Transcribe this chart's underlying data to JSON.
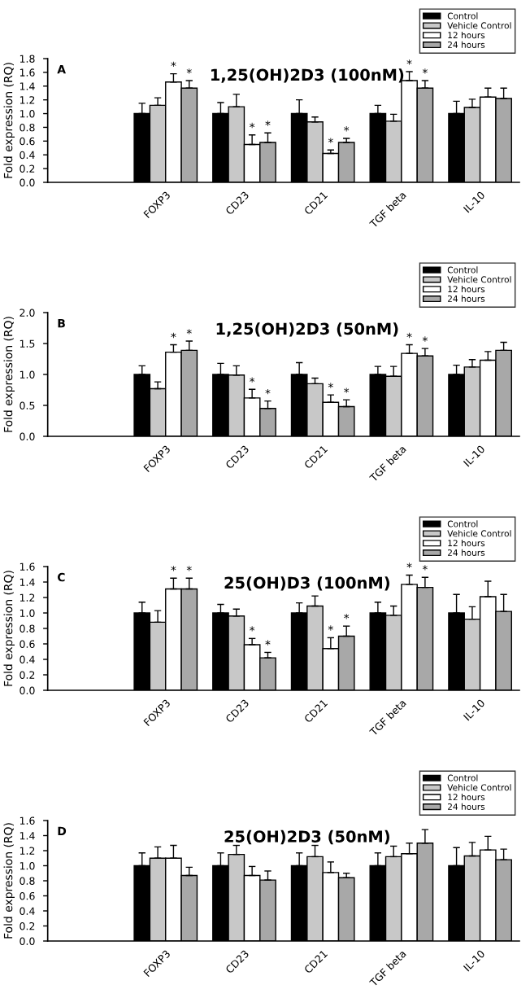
{
  "chart_data": [
    {
      "type": "bar",
      "title": "1,25(OH)2D3 (100nM)",
      "ylabel": "Fold expression (RQ)",
      "annotations": [
        "A"
      ],
      "categories": [
        null,
        "FOXP3",
        "CD23",
        "CD21",
        "TGF beta",
        "IL-10"
      ],
      "ylim": [
        0,
        1.8
      ],
      "yticks": [
        {
          "value": 0,
          "label": "0.0"
        },
        {
          "value": 0.2,
          "label": "0.2"
        },
        {
          "value": 0.4,
          "label": "0.4"
        },
        {
          "value": 0.6,
          "label": "0.6"
        },
        {
          "value": 0.8,
          "label": "0.8"
        },
        {
          "value": 1.0,
          "label": "1.0"
        },
        {
          "value": 1.2,
          "label": "1.2"
        },
        {
          "value": 1.4,
          "label": "1.4"
        },
        {
          "value": 1.6,
          "label": "1.6"
        },
        {
          "value": 1.8,
          "label": "1.8"
        }
      ],
      "legend": "top right",
      "grid": false,
      "series": [
        {
          "name": "Control",
          "color": "#000000",
          "values": [
            null,
            1.0,
            1.0,
            1.0,
            1.0,
            1.0
          ],
          "errors": [
            null,
            [
              1.0,
              1.15
            ],
            [
              1.0,
              1.16
            ],
            [
              1.0,
              1.2
            ],
            [
              1.0,
              1.12
            ],
            [
              1.0,
              1.18
            ]
          ]
        },
        {
          "name": "Vehicle Control",
          "color": "#c8c8c8",
          "values": [
            null,
            1.12,
            1.1,
            0.88,
            0.89,
            1.09
          ],
          "errors": [
            null,
            [
              1.12,
              1.23
            ],
            [
              1.1,
              1.28
            ],
            [
              0.88,
              0.95
            ],
            [
              0.89,
              0.99
            ],
            [
              1.09,
              1.21
            ]
          ]
        },
        {
          "name": "12 hours",
          "color": "#ffffff",
          "values": [
            null,
            1.46,
            0.55,
            0.42,
            1.48,
            1.24
          ],
          "errors": [
            null,
            [
              1.46,
              1.58
            ],
            [
              0.55,
              0.69
            ],
            [
              0.42,
              0.47
            ],
            [
              1.48,
              1.61
            ],
            [
              1.24,
              1.37
            ]
          ],
          "value_labels": [
            null,
            "*",
            "*",
            "*",
            "*",
            null
          ]
        },
        {
          "name": "24 hours",
          "color": "#a8a8a8",
          "values": [
            null,
            1.37,
            0.58,
            0.58,
            1.37,
            1.22
          ],
          "errors": [
            null,
            [
              1.37,
              1.48
            ],
            [
              0.58,
              0.72
            ],
            [
              0.58,
              0.64
            ],
            [
              1.37,
              1.48
            ],
            [
              1.22,
              1.37
            ]
          ],
          "value_labels": [
            null,
            "*",
            "*",
            "*",
            "*",
            null
          ]
        }
      ]
    },
    {
      "type": "bar",
      "title": "1,25(OH)2D3 (50nM)",
      "ylabel": "Fold expression (RQ)",
      "annotations": [
        "B"
      ],
      "categories": [
        null,
        "FOXP3",
        "CD23",
        "CD21",
        "TGF beta",
        "IL-10"
      ],
      "ylim": [
        0,
        2.0
      ],
      "yticks": [
        {
          "value": 0,
          "label": "0.0"
        },
        {
          "value": 0.5,
          "label": "0.5"
        },
        {
          "value": 1.0,
          "label": "1.0"
        },
        {
          "value": 1.5,
          "label": "1.5"
        },
        {
          "value": 2.0,
          "label": "2.0"
        }
      ],
      "legend": "top right",
      "grid": false,
      "series": [
        {
          "name": "Control",
          "color": "#000000",
          "values": [
            null,
            1.0,
            1.0,
            1.0,
            1.0,
            1.0
          ],
          "errors": [
            null,
            [
              1.0,
              1.14
            ],
            [
              1.0,
              1.18
            ],
            [
              1.0,
              1.19
            ],
            [
              1.0,
              1.13
            ],
            [
              1.0,
              1.15
            ]
          ]
        },
        {
          "name": "Vehicle Control",
          "color": "#c8c8c8",
          "values": [
            null,
            0.77,
            0.99,
            0.85,
            0.97,
            1.12
          ],
          "errors": [
            null,
            [
              0.77,
              0.88
            ],
            [
              0.99,
              1.14
            ],
            [
              0.85,
              0.94
            ],
            [
              0.97,
              1.13
            ],
            [
              1.12,
              1.24
            ]
          ]
        },
        {
          "name": "12 hours",
          "color": "#ffffff",
          "values": [
            null,
            1.36,
            0.62,
            0.55,
            1.34,
            1.23
          ],
          "errors": [
            null,
            [
              1.36,
              1.48
            ],
            [
              0.62,
              0.76
            ],
            [
              0.55,
              0.67
            ],
            [
              1.34,
              1.48
            ],
            [
              1.23,
              1.37
            ]
          ],
          "value_labels": [
            null,
            "*",
            "*",
            "*",
            "*",
            null
          ]
        },
        {
          "name": "24 hours",
          "color": "#a8a8a8",
          "values": [
            null,
            1.39,
            0.45,
            0.48,
            1.3,
            1.39
          ],
          "errors": [
            null,
            [
              1.39,
              1.54
            ],
            [
              0.45,
              0.57
            ],
            [
              0.48,
              0.59
            ],
            [
              1.3,
              1.42
            ],
            [
              1.39,
              1.52
            ]
          ],
          "value_labels": [
            null,
            "*",
            "*",
            "*",
            "*",
            null
          ]
        }
      ]
    },
    {
      "type": "bar",
      "title": "25(OH)D3 (100nM)",
      "ylabel": "Fold expression (RQ)",
      "annotations": [
        "C"
      ],
      "categories": [
        null,
        "FOXP3",
        "CD23",
        "CD21",
        "TGF beta",
        "IL-10"
      ],
      "ylim": [
        0,
        1.6
      ],
      "yticks": [
        {
          "value": 0,
          "label": "0.0"
        },
        {
          "value": 0.2,
          "label": "0.2"
        },
        {
          "value": 0.4,
          "label": "0.4"
        },
        {
          "value": 0.6,
          "label": "0.6"
        },
        {
          "value": 0.8,
          "label": "0.8"
        },
        {
          "value": 1.0,
          "label": "1.0"
        },
        {
          "value": 1.2,
          "label": "1.2"
        },
        {
          "value": 1.4,
          "label": "1.4"
        },
        {
          "value": 1.6,
          "label": "1.6"
        }
      ],
      "legend": "top right",
      "grid": false,
      "series": [
        {
          "name": "Control",
          "color": "#000000",
          "values": [
            null,
            1.0,
            1.0,
            1.0,
            1.0,
            1.0
          ],
          "errors": [
            null,
            [
              1.0,
              1.14
            ],
            [
              1.0,
              1.11
            ],
            [
              1.0,
              1.13
            ],
            [
              1.0,
              1.14
            ],
            [
              1.0,
              1.24
            ]
          ]
        },
        {
          "name": "Vehicle Control",
          "color": "#c8c8c8",
          "values": [
            null,
            0.88,
            0.96,
            1.09,
            0.97,
            0.92
          ],
          "errors": [
            null,
            [
              0.88,
              1.03
            ],
            [
              0.96,
              1.05
            ],
            [
              1.09,
              1.22
            ],
            [
              0.97,
              1.09
            ],
            [
              0.92,
              1.08
            ]
          ]
        },
        {
          "name": "12 hours",
          "color": "#ffffff",
          "values": [
            null,
            1.31,
            0.59,
            0.54,
            1.37,
            1.21
          ],
          "errors": [
            null,
            [
              1.31,
              1.45
            ],
            [
              0.59,
              0.67
            ],
            [
              0.54,
              0.68
            ],
            [
              1.37,
              1.49
            ],
            [
              1.21,
              1.41
            ]
          ],
          "value_labels": [
            null,
            "*",
            "*",
            "*",
            "*",
            null
          ]
        },
        {
          "name": "24 hours",
          "color": "#a8a8a8",
          "values": [
            null,
            1.31,
            0.42,
            0.7,
            1.33,
            1.02
          ],
          "errors": [
            null,
            [
              1.31,
              1.45
            ],
            [
              0.42,
              0.49
            ],
            [
              0.7,
              0.83
            ],
            [
              1.33,
              1.46
            ],
            [
              1.02,
              1.24
            ]
          ],
          "value_labels": [
            null,
            "*",
            "*",
            "*",
            "*",
            null
          ]
        }
      ]
    },
    {
      "type": "bar",
      "title": "25(OH)2D3 (50nM)",
      "ylabel": "Fold expression (RQ)",
      "annotations": [
        "D"
      ],
      "categories": [
        null,
        "FOXP3",
        "CD23",
        "CD21",
        "TGF beta",
        "IL-10"
      ],
      "ylim": [
        0,
        1.6
      ],
      "yticks": [
        {
          "value": 0,
          "label": "0.0"
        },
        {
          "value": 0.2,
          "label": "0.2"
        },
        {
          "value": 0.4,
          "label": "0.4"
        },
        {
          "value": 0.6,
          "label": "0.6"
        },
        {
          "value": 0.8,
          "label": "0.8"
        },
        {
          "value": 1.0,
          "label": "1.0"
        },
        {
          "value": 1.2,
          "label": "1.2"
        },
        {
          "value": 1.4,
          "label": "1.4"
        },
        {
          "value": 1.6,
          "label": "1.6"
        }
      ],
      "legend": "top right",
      "grid": false,
      "series": [
        {
          "name": "Control",
          "color": "#000000",
          "values": [
            null,
            1.0,
            1.0,
            1.0,
            1.0,
            1.0
          ],
          "errors": [
            null,
            [
              1.0,
              1.17
            ],
            [
              1.0,
              1.17
            ],
            [
              1.0,
              1.17
            ],
            [
              1.0,
              1.17
            ],
            [
              1.0,
              1.24
            ]
          ]
        },
        {
          "name": "Vehicle Control",
          "color": "#c8c8c8",
          "values": [
            null,
            1.1,
            1.15,
            1.12,
            1.12,
            1.13
          ],
          "errors": [
            null,
            [
              1.1,
              1.25
            ],
            [
              1.15,
              1.27
            ],
            [
              1.12,
              1.27
            ],
            [
              1.12,
              1.26
            ],
            [
              1.13,
              1.31
            ]
          ]
        },
        {
          "name": "12 hours",
          "color": "#ffffff",
          "values": [
            null,
            1.1,
            0.87,
            0.91,
            1.16,
            1.21
          ],
          "errors": [
            null,
            [
              1.1,
              1.27
            ],
            [
              0.87,
              0.99
            ],
            [
              0.91,
              1.05
            ],
            [
              1.16,
              1.3
            ],
            [
              1.21,
              1.39
            ]
          ]
        },
        {
          "name": "24 hours",
          "color": "#a8a8a8",
          "values": [
            null,
            0.87,
            0.81,
            0.84,
            1.3,
            1.08
          ],
          "errors": [
            null,
            [
              0.87,
              0.98
            ],
            [
              0.81,
              0.93
            ],
            [
              0.84,
              0.9
            ],
            [
              1.3,
              1.48
            ],
            [
              1.08,
              1.22
            ]
          ]
        }
      ]
    }
  ]
}
